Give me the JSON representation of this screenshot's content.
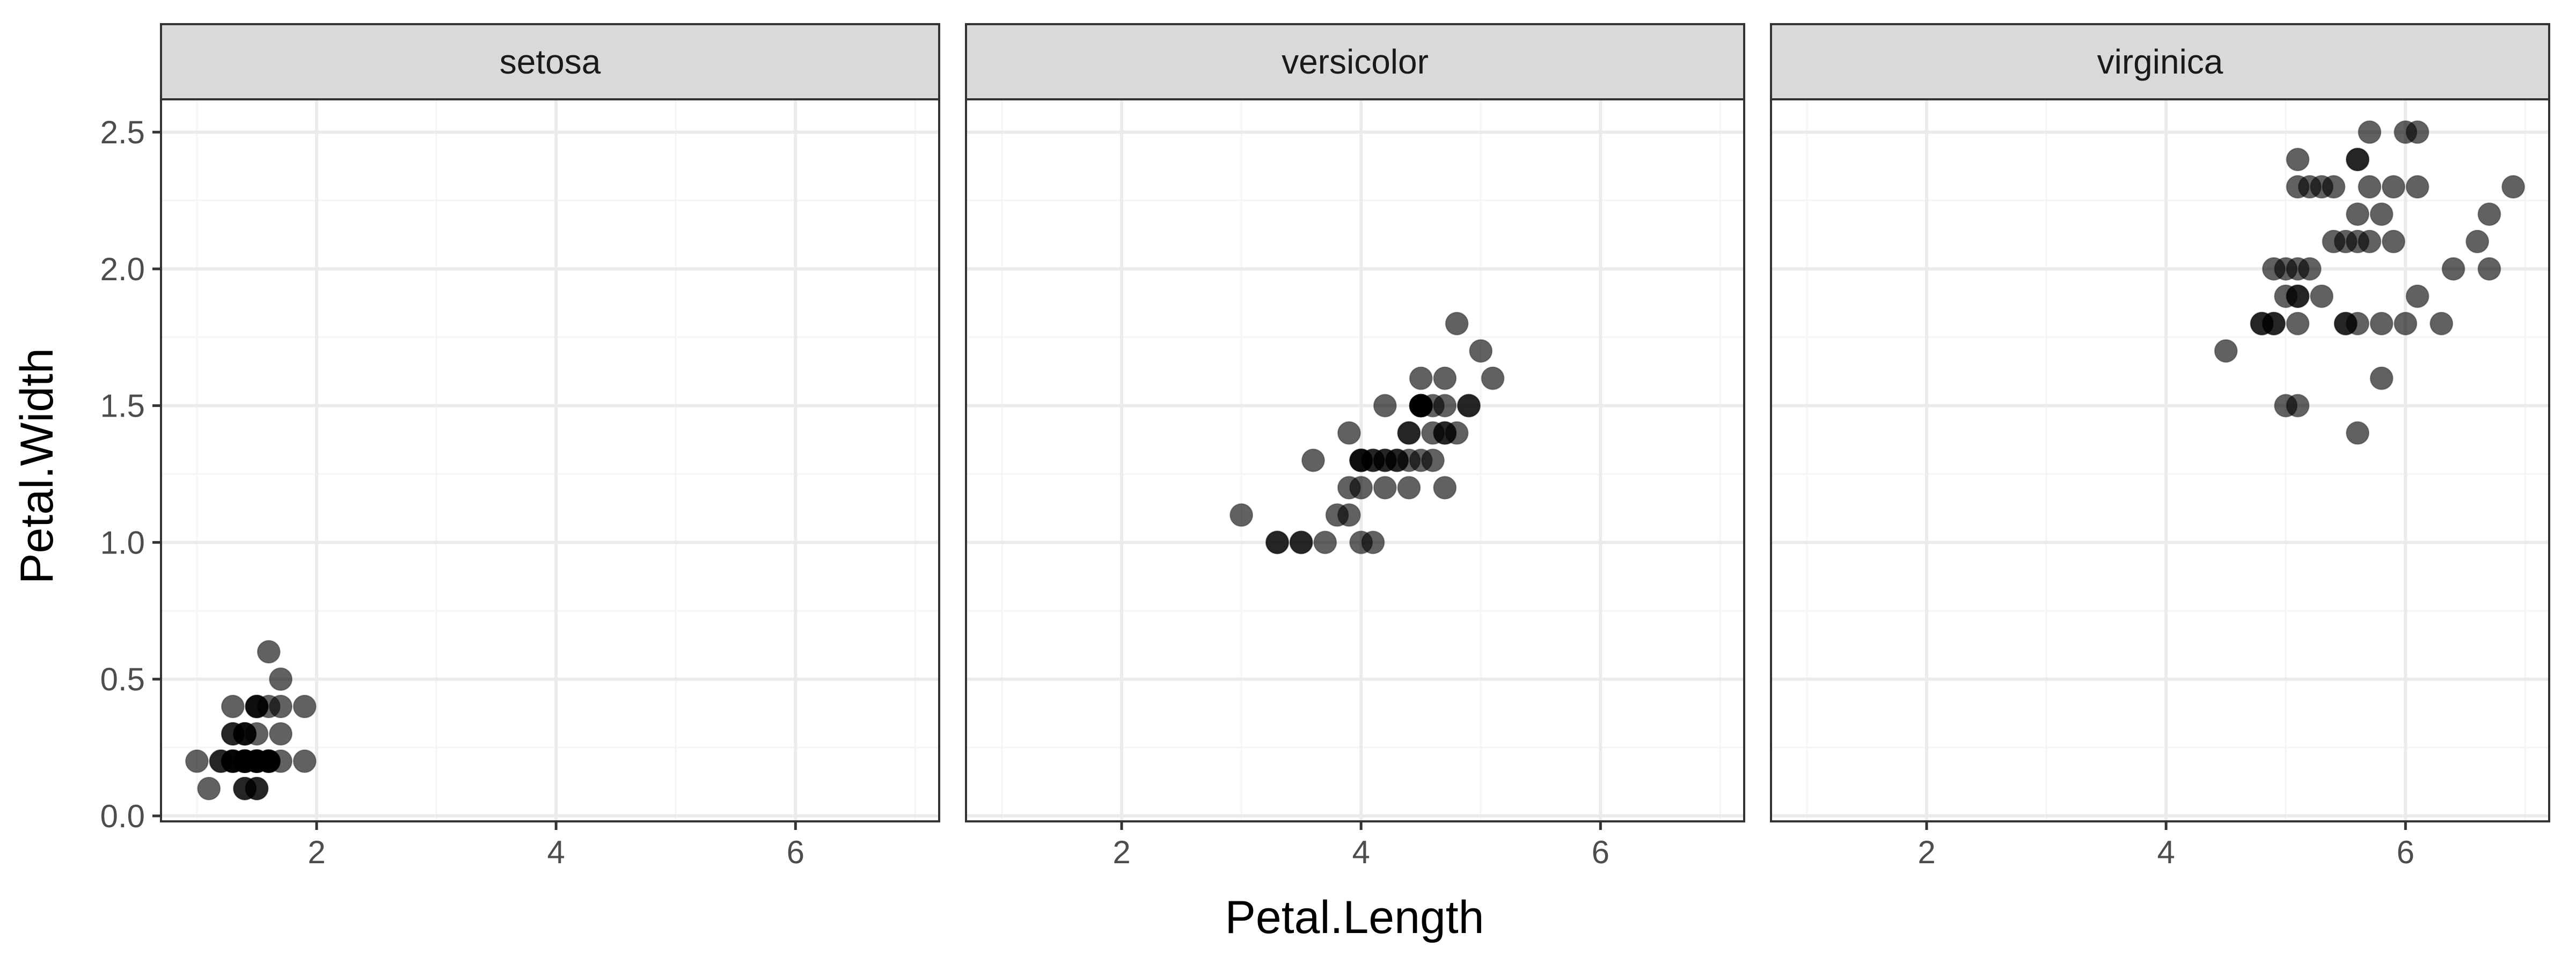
{
  "colors": {
    "point_fill": "#000000",
    "point_opacity": 0.62,
    "strip_bg": "#d9d9d9",
    "grid_major": "#ebebeb",
    "grid_minor": "#f5f5f5",
    "panel_border": "#333333",
    "tick_text": "#4d4d4d"
  },
  "chart_data": {
    "type": "scatter",
    "facet_by": "Species",
    "xlabel": "Petal.Length",
    "ylabel": "Petal.Width",
    "xlim": [
      0.7,
      7.2
    ],
    "ylim": [
      -0.02,
      2.62
    ],
    "x_ticks": [
      2,
      4,
      6
    ],
    "x_tick_labels": [
      "2",
      "4",
      "6"
    ],
    "y_ticks": [
      0,
      0.5,
      1,
      1.5,
      2,
      2.5
    ],
    "y_tick_labels": [
      "0.0",
      "0.5",
      "1.0",
      "1.5",
      "2.0",
      "2.5"
    ],
    "grid": true,
    "shared_axes": true,
    "panels": [
      {
        "label": "setosa",
        "points": [
          [
            1.4,
            0.2
          ],
          [
            1.4,
            0.2
          ],
          [
            1.3,
            0.2
          ],
          [
            1.5,
            0.2
          ],
          [
            1.4,
            0.2
          ],
          [
            1.7,
            0.4
          ],
          [
            1.4,
            0.3
          ],
          [
            1.5,
            0.2
          ],
          [
            1.4,
            0.2
          ],
          [
            1.5,
            0.1
          ],
          [
            1.5,
            0.2
          ],
          [
            1.6,
            0.2
          ],
          [
            1.4,
            0.1
          ],
          [
            1.1,
            0.1
          ],
          [
            1.2,
            0.2
          ],
          [
            1.5,
            0.4
          ],
          [
            1.3,
            0.4
          ],
          [
            1.4,
            0.3
          ],
          [
            1.7,
            0.3
          ],
          [
            1.5,
            0.3
          ],
          [
            1.7,
            0.2
          ],
          [
            1.5,
            0.4
          ],
          [
            1.0,
            0.2
          ],
          [
            1.7,
            0.5
          ],
          [
            1.9,
            0.2
          ],
          [
            1.6,
            0.2
          ],
          [
            1.6,
            0.4
          ],
          [
            1.5,
            0.2
          ],
          [
            1.4,
            0.2
          ],
          [
            1.6,
            0.2
          ],
          [
            1.6,
            0.2
          ],
          [
            1.5,
            0.4
          ],
          [
            1.5,
            0.1
          ],
          [
            1.4,
            0.2
          ],
          [
            1.5,
            0.2
          ],
          [
            1.2,
            0.2
          ],
          [
            1.3,
            0.2
          ],
          [
            1.4,
            0.1
          ],
          [
            1.3,
            0.2
          ],
          [
            1.5,
            0.2
          ],
          [
            1.3,
            0.3
          ],
          [
            1.3,
            0.3
          ],
          [
            1.3,
            0.2
          ],
          [
            1.6,
            0.6
          ],
          [
            1.9,
            0.4
          ],
          [
            1.4,
            0.3
          ],
          [
            1.6,
            0.2
          ],
          [
            1.4,
            0.2
          ],
          [
            1.5,
            0.2
          ],
          [
            1.4,
            0.2
          ]
        ]
      },
      {
        "label": "versicolor",
        "points": [
          [
            4.7,
            1.4
          ],
          [
            4.5,
            1.5
          ],
          [
            4.9,
            1.5
          ],
          [
            4.0,
            1.3
          ],
          [
            4.6,
            1.5
          ],
          [
            4.5,
            1.3
          ],
          [
            4.7,
            1.6
          ],
          [
            3.3,
            1.0
          ],
          [
            4.6,
            1.3
          ],
          [
            3.9,
            1.4
          ],
          [
            3.5,
            1.0
          ],
          [
            4.2,
            1.5
          ],
          [
            4.0,
            1.0
          ],
          [
            4.7,
            1.4
          ],
          [
            3.6,
            1.3
          ],
          [
            4.4,
            1.4
          ],
          [
            4.5,
            1.5
          ],
          [
            4.1,
            1.0
          ],
          [
            4.5,
            1.5
          ],
          [
            3.9,
            1.1
          ],
          [
            4.8,
            1.8
          ],
          [
            4.0,
            1.3
          ],
          [
            4.9,
            1.5
          ],
          [
            4.7,
            1.2
          ],
          [
            4.3,
            1.3
          ],
          [
            4.4,
            1.4
          ],
          [
            4.8,
            1.4
          ],
          [
            5.0,
            1.7
          ],
          [
            4.5,
            1.5
          ],
          [
            3.5,
            1.0
          ],
          [
            3.8,
            1.1
          ],
          [
            3.7,
            1.0
          ],
          [
            3.9,
            1.2
          ],
          [
            5.1,
            1.6
          ],
          [
            4.5,
            1.5
          ],
          [
            4.5,
            1.6
          ],
          [
            4.7,
            1.5
          ],
          [
            4.4,
            1.3
          ],
          [
            4.1,
            1.3
          ],
          [
            4.0,
            1.3
          ],
          [
            4.4,
            1.2
          ],
          [
            4.6,
            1.4
          ],
          [
            4.0,
            1.2
          ],
          [
            3.3,
            1.0
          ],
          [
            4.2,
            1.3
          ],
          [
            4.2,
            1.2
          ],
          [
            4.2,
            1.3
          ],
          [
            4.3,
            1.3
          ],
          [
            3.0,
            1.1
          ],
          [
            4.1,
            1.3
          ]
        ]
      },
      {
        "label": "virginica",
        "points": [
          [
            6.0,
            2.5
          ],
          [
            5.1,
            1.9
          ],
          [
            5.9,
            2.1
          ],
          [
            5.6,
            1.8
          ],
          [
            5.8,
            2.2
          ],
          [
            6.6,
            2.1
          ],
          [
            4.5,
            1.7
          ],
          [
            6.3,
            1.8
          ],
          [
            5.8,
            1.8
          ],
          [
            6.1,
            2.5
          ],
          [
            5.1,
            2.0
          ],
          [
            5.3,
            1.9
          ],
          [
            5.5,
            2.1
          ],
          [
            5.0,
            2.0
          ],
          [
            5.1,
            2.4
          ],
          [
            5.3,
            2.3
          ],
          [
            5.5,
            1.8
          ],
          [
            6.7,
            2.2
          ],
          [
            6.9,
            2.3
          ],
          [
            5.0,
            1.5
          ],
          [
            5.7,
            2.3
          ],
          [
            4.9,
            2.0
          ],
          [
            6.7,
            2.0
          ],
          [
            4.9,
            1.8
          ],
          [
            5.7,
            2.1
          ],
          [
            6.0,
            1.8
          ],
          [
            4.8,
            1.8
          ],
          [
            4.9,
            1.8
          ],
          [
            5.6,
            2.1
          ],
          [
            5.8,
            1.6
          ],
          [
            6.1,
            1.9
          ],
          [
            6.4,
            2.0
          ],
          [
            5.6,
            2.2
          ],
          [
            5.1,
            1.5
          ],
          [
            5.6,
            1.4
          ],
          [
            6.1,
            2.3
          ],
          [
            5.6,
            2.4
          ],
          [
            5.5,
            1.8
          ],
          [
            4.8,
            1.8
          ],
          [
            5.4,
            2.1
          ],
          [
            5.6,
            2.4
          ],
          [
            5.1,
            2.3
          ],
          [
            5.1,
            1.9
          ],
          [
            5.9,
            2.3
          ],
          [
            5.7,
            2.5
          ],
          [
            5.2,
            2.3
          ],
          [
            5.0,
            1.9
          ],
          [
            5.2,
            2.0
          ],
          [
            5.4,
            2.3
          ],
          [
            5.1,
            1.8
          ]
        ]
      }
    ]
  }
}
